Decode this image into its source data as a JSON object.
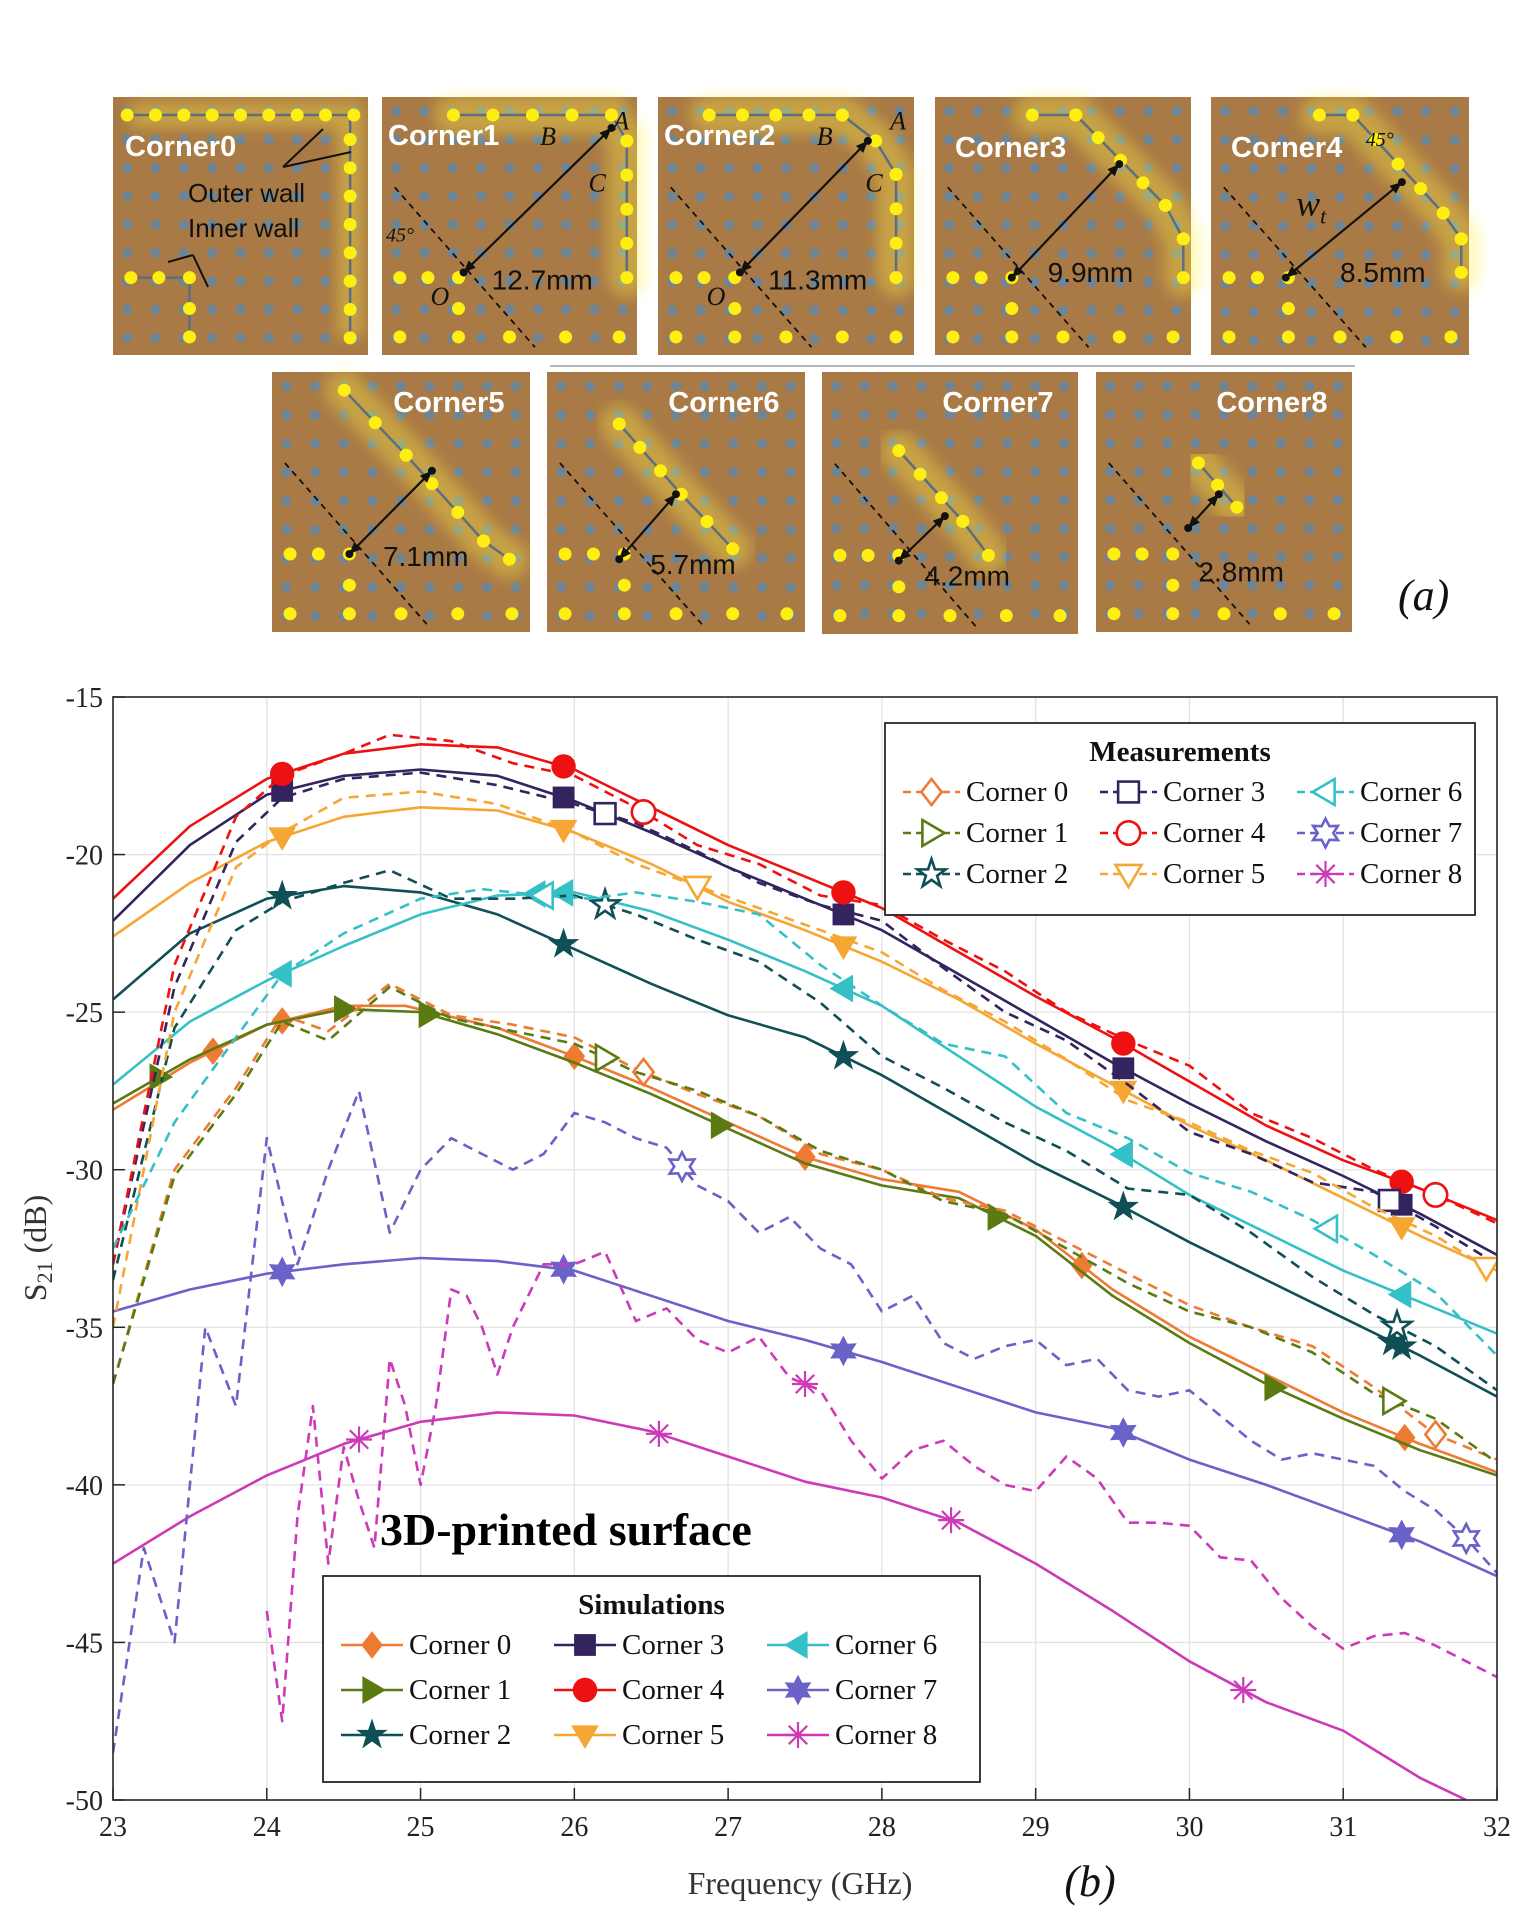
{
  "panel_a": {
    "label": "(a)",
    "corners": [
      {
        "name": "Corner0",
        "dimension": "",
        "wall_labels": [
          "Outer wall",
          "Inner wall"
        ]
      },
      {
        "name": "Corner1",
        "dimension": "12.7mm",
        "points": [
          "A",
          "B",
          "C",
          "O"
        ],
        "angle": "45°"
      },
      {
        "name": "Corner2",
        "dimension": "11.3mm",
        "points": [
          "A",
          "B",
          "C",
          "O"
        ]
      },
      {
        "name": "Corner3",
        "dimension": "9.9mm"
      },
      {
        "name": "Corner4",
        "dimension": "8.5mm",
        "width_symbol": "w",
        "width_subscript": "t",
        "angle": "45°"
      },
      {
        "name": "Corner5",
        "dimension": "7.1mm"
      },
      {
        "name": "Corner6",
        "dimension": "5.7mm"
      },
      {
        "name": "Corner7",
        "dimension": "4.2mm"
      },
      {
        "name": "Corner8",
        "dimension": "2.8mm"
      }
    ]
  },
  "colors": {
    "Corner 0": "#ee7b33",
    "Corner 1": "#5a7a12",
    "Corner 2": "#0f4f55",
    "Corner 3": "#33235e",
    "Corner 4": "#ee1111",
    "Corner 5": "#f6a632",
    "Corner 6": "#35c0c8",
    "Corner 7": "#6a62c8",
    "Corner 8": "#cc3ab6"
  },
  "chart_data": {
    "type": "line",
    "panel_label": "(b)",
    "annotation": "3D-printed surface",
    "xlabel": "Frequency (GHz)",
    "ylabel": "S21 (dB)",
    "xlim": [
      23,
      32
    ],
    "ylim": [
      -50,
      -15
    ],
    "xticks": [
      23,
      24,
      25,
      26,
      27,
      28,
      29,
      30,
      31,
      32
    ],
    "yticks": [
      -15,
      -20,
      -25,
      -30,
      -35,
      -40,
      -45,
      -50
    ],
    "grid": true,
    "legends": {
      "measurements": {
        "title": "Measurements",
        "placement": "top-right",
        "entries": [
          "Corner 0",
          "Corner 1",
          "Corner 2",
          "Corner 3",
          "Corner 4",
          "Corner 5",
          "Corner 6",
          "Corner 7",
          "Corner 8"
        ]
      },
      "simulations": {
        "title": "Simulations",
        "placement": "bottom-left",
        "entries": [
          "Corner 0",
          "Corner 1",
          "Corner 2",
          "Corner 3",
          "Corner 4",
          "Corner 5",
          "Corner 6",
          "Corner 7",
          "Corner 8"
        ]
      }
    },
    "simulations": [
      {
        "name": "Corner 0",
        "marker": "diamond",
        "filled": true,
        "x": [
          23,
          23.5,
          24,
          24.5,
          24.9,
          25.5,
          26,
          26.5,
          27,
          27.5,
          28,
          28.5,
          29,
          29.5,
          30,
          30.5,
          31,
          31.5,
          32
        ],
        "y": [
          -28.1,
          -26.6,
          -25.4,
          -24.8,
          -24.8,
          -25.5,
          -26.4,
          -27.4,
          -28.5,
          -29.6,
          -30.3,
          -30.7,
          -31.9,
          -33.8,
          -35.3,
          -36.5,
          -37.7,
          -38.7,
          -39.6
        ]
      },
      {
        "name": "Corner 1",
        "marker": "triangle-right",
        "filled": true,
        "x": [
          23,
          23.5,
          24,
          24.5,
          25,
          25.5,
          26,
          26.5,
          27,
          27.5,
          28,
          28.5,
          29,
          29.5,
          30,
          30.5,
          31,
          31.5,
          32
        ],
        "y": [
          -27.9,
          -26.5,
          -25.4,
          -24.9,
          -25.0,
          -25.7,
          -26.6,
          -27.6,
          -28.7,
          -29.8,
          -30.5,
          -30.9,
          -32.1,
          -34.0,
          -35.5,
          -36.8,
          -37.9,
          -38.9,
          -39.7
        ]
      },
      {
        "name": "Corner 2",
        "marker": "star",
        "filled": true,
        "x": [
          23,
          23.5,
          24,
          24.5,
          25,
          25.5,
          26,
          26.5,
          27,
          27.5,
          28,
          28.5,
          29,
          29.5,
          30,
          30.5,
          31,
          31.5,
          32
        ],
        "y": [
          -24.6,
          -22.5,
          -21.4,
          -21.0,
          -21.2,
          -21.9,
          -23.0,
          -24.1,
          -25.1,
          -25.8,
          -27.0,
          -28.4,
          -29.8,
          -31.0,
          -32.3,
          -33.5,
          -34.7,
          -35.9,
          -37.2
        ]
      },
      {
        "name": "Corner 3",
        "marker": "square",
        "filled": true,
        "x": [
          23,
          23.5,
          24,
          24.5,
          25,
          25.5,
          26,
          26.5,
          27,
          27.5,
          28,
          28.5,
          29,
          29.5,
          30,
          30.5,
          31,
          31.5,
          32
        ],
        "y": [
          -22.1,
          -19.7,
          -18.1,
          -17.5,
          -17.3,
          -17.5,
          -18.3,
          -19.3,
          -20.4,
          -21.4,
          -22.4,
          -23.8,
          -25.2,
          -26.6,
          -27.9,
          -29.1,
          -30.2,
          -31.4,
          -32.7
        ]
      },
      {
        "name": "Corner 4",
        "marker": "circle",
        "filled": true,
        "x": [
          23,
          23.5,
          24,
          24.5,
          25,
          25.5,
          26,
          26.5,
          27,
          27.5,
          28,
          28.5,
          29,
          29.5,
          30,
          30.5,
          31,
          31.5,
          32
        ],
        "y": [
          -21.4,
          -19.1,
          -17.6,
          -16.8,
          -16.5,
          -16.6,
          -17.3,
          -18.5,
          -19.7,
          -20.7,
          -21.7,
          -23.1,
          -24.5,
          -25.8,
          -27.2,
          -28.6,
          -29.7,
          -30.6,
          -31.6
        ]
      },
      {
        "name": "Corner 5",
        "marker": "triangle-down",
        "filled": true,
        "x": [
          23,
          23.5,
          24,
          24.5,
          25,
          25.5,
          26,
          26.5,
          27,
          27.5,
          28,
          28.5,
          29,
          29.5,
          30,
          30.5,
          31,
          31.5,
          32
        ],
        "y": [
          -22.6,
          -20.9,
          -19.6,
          -18.8,
          -18.5,
          -18.6,
          -19.3,
          -20.3,
          -21.5,
          -22.4,
          -23.4,
          -24.6,
          -26.0,
          -27.3,
          -28.6,
          -29.7,
          -30.9,
          -32.1,
          -33.2
        ]
      },
      {
        "name": "Corner 6",
        "marker": "triangle-left",
        "filled": true,
        "x": [
          23,
          23.5,
          24,
          24.5,
          25,
          25.5,
          26,
          26.5,
          27,
          27.5,
          28,
          28.5,
          29,
          29.5,
          30,
          30.5,
          31,
          31.5,
          32
        ],
        "y": [
          -27.3,
          -25.3,
          -24.0,
          -22.9,
          -21.9,
          -21.3,
          -21.2,
          -21.8,
          -22.7,
          -23.7,
          -24.8,
          -26.4,
          -28.0,
          -29.3,
          -30.8,
          -32.0,
          -33.2,
          -34.2,
          -35.2
        ]
      },
      {
        "name": "Corner 7",
        "marker": "hexagram",
        "filled": true,
        "x": [
          23,
          23.5,
          24,
          24.5,
          25,
          25.5,
          26,
          26.5,
          27,
          27.5,
          28,
          28.5,
          29,
          29.5,
          30,
          30.5,
          31,
          31.5,
          32
        ],
        "y": [
          -34.5,
          -33.8,
          -33.3,
          -33.0,
          -32.8,
          -32.9,
          -33.2,
          -34.0,
          -34.8,
          -35.4,
          -36.1,
          -36.9,
          -37.7,
          -38.2,
          -39.2,
          -40.0,
          -40.9,
          -41.8,
          -42.9
        ]
      },
      {
        "name": "Corner 8",
        "marker": "asterisk",
        "filled": false,
        "x": [
          23,
          23.5,
          24,
          24.5,
          25,
          25.5,
          26,
          26.5,
          27,
          27.5,
          28,
          28.5,
          29,
          29.5,
          30,
          30.5,
          31,
          31.5,
          31.8
        ],
        "y": [
          -42.5,
          -41.0,
          -39.7,
          -38.7,
          -38.0,
          -37.7,
          -37.8,
          -38.3,
          -39.1,
          -39.9,
          -40.4,
          -41.2,
          -42.5,
          -44.0,
          -45.6,
          -46.9,
          -47.8,
          -49.3,
          -50.0
        ]
      }
    ],
    "measurements": [
      {
        "name": "Corner 0",
        "marker": "diamond",
        "x": [
          23,
          23.4,
          23.8,
          24.1,
          24.4,
          24.8,
          25.2,
          25.6,
          26,
          26.4,
          26.8,
          27.2,
          27.6,
          28,
          28.4,
          28.8,
          29.2,
          29.6,
          30,
          30.4,
          30.8,
          31.2,
          31.6,
          32
        ],
        "y": [
          -36.8,
          -30.0,
          -27.4,
          -25.1,
          -25.6,
          -24.1,
          -25.1,
          -25.4,
          -25.8,
          -26.8,
          -27.6,
          -28.3,
          -29.5,
          -30.0,
          -30.9,
          -31.3,
          -32.3,
          -33.3,
          -34.3,
          -35.0,
          -35.6,
          -36.9,
          -38.4,
          -39.2
        ]
      },
      {
        "name": "Corner 1",
        "marker": "triangle-right",
        "x": [
          23,
          23.4,
          23.8,
          24.1,
          24.4,
          24.8,
          25.2,
          25.6,
          26,
          26.4,
          26.8,
          27.2,
          27.6,
          28,
          28.4,
          28.8,
          29.2,
          29.6,
          30,
          30.4,
          30.8,
          31.2,
          31.6,
          32
        ],
        "y": [
          -36.8,
          -30.2,
          -27.6,
          -25.3,
          -25.9,
          -24.2,
          -25.2,
          -25.6,
          -26.0,
          -26.9,
          -27.5,
          -28.3,
          -29.4,
          -30.0,
          -31.0,
          -31.4,
          -32.5,
          -33.6,
          -34.5,
          -35.0,
          -35.8,
          -37.1,
          -37.9,
          -39.3
        ]
      },
      {
        "name": "Corner 2",
        "marker": "star",
        "x": [
          23,
          23.4,
          23.8,
          24.1,
          24.5,
          24.8,
          25.2,
          25.6,
          26,
          26.4,
          26.8,
          27.2,
          27.6,
          28,
          28.4,
          28.8,
          29.2,
          29.6,
          30,
          30.4,
          30.8,
          31.2,
          31.6,
          32
        ],
        "y": [
          -33.5,
          -25.5,
          -22.4,
          -21.5,
          -20.9,
          -20.5,
          -21.4,
          -21.4,
          -21.3,
          -21.9,
          -22.7,
          -23.4,
          -24.7,
          -26.4,
          -27.4,
          -28.5,
          -29.4,
          -30.6,
          -30.8,
          -32.0,
          -33.4,
          -34.6,
          -35.6,
          -37.0
        ]
      },
      {
        "name": "Corner 3",
        "marker": "square",
        "x": [
          23,
          23.4,
          23.8,
          24.1,
          24.5,
          25,
          25.5,
          26,
          26.4,
          26.8,
          27.2,
          27.6,
          28,
          28.4,
          28.8,
          29.2,
          29.6,
          30,
          30.4,
          30.8,
          31.2,
          31.6,
          32
        ],
        "y": [
          -33.0,
          -24.2,
          -19.6,
          -18.2,
          -17.6,
          -17.4,
          -17.8,
          -18.4,
          -19.0,
          -19.9,
          -20.9,
          -21.6,
          -22.1,
          -23.6,
          -25.0,
          -25.9,
          -27.3,
          -28.8,
          -29.5,
          -30.4,
          -30.7,
          -31.8,
          -33.0
        ]
      },
      {
        "name": "Corner 4",
        "marker": "circle",
        "x": [
          23,
          23.4,
          23.8,
          24.1,
          24.5,
          24.8,
          25.2,
          25.6,
          26,
          26.4,
          26.8,
          27.2,
          27.6,
          28,
          28.4,
          28.8,
          29.2,
          29.6,
          30,
          30.4,
          30.8,
          31.2,
          31.6,
          32
        ],
        "y": [
          -33.0,
          -23.5,
          -18.8,
          -17.5,
          -16.8,
          -16.2,
          -16.4,
          -17.1,
          -17.5,
          -18.5,
          -19.7,
          -20.3,
          -21.3,
          -21.6,
          -22.7,
          -23.7,
          -25.0,
          -25.9,
          -26.7,
          -28.2,
          -29.0,
          -30.0,
          -30.8,
          -31.7
        ]
      },
      {
        "name": "Corner 5",
        "marker": "triangle-down",
        "x": [
          23,
          23.4,
          23.8,
          24.1,
          24.5,
          25,
          25.5,
          26,
          26.4,
          26.8,
          27.2,
          27.6,
          28,
          28.4,
          28.8,
          29.2,
          29.6,
          30,
          30.4,
          30.8,
          31.2,
          31.6,
          32
        ],
        "y": [
          -35.0,
          -25.0,
          -20.4,
          -19.3,
          -18.2,
          -18.0,
          -18.4,
          -19.3,
          -20.3,
          -21.0,
          -21.7,
          -22.4,
          -23.1,
          -24.3,
          -25.3,
          -26.5,
          -27.8,
          -28.5,
          -29.4,
          -30.1,
          -31.2,
          -32.1,
          -33.3
        ]
      },
      {
        "name": "Corner 6",
        "marker": "triangle-left",
        "x": [
          23,
          23.4,
          23.8,
          24.1,
          24.5,
          25,
          25.4,
          25.8,
          26.1,
          26.4,
          26.8,
          27.2,
          27.6,
          28,
          28.4,
          28.8,
          29.2,
          29.6,
          30,
          30.4,
          30.8,
          31.2,
          31.6,
          32
        ],
        "y": [
          -32.5,
          -28.5,
          -25.8,
          -23.8,
          -22.5,
          -21.4,
          -21.1,
          -21.3,
          -21.4,
          -21.2,
          -21.5,
          -21.9,
          -23.5,
          -24.8,
          -26.0,
          -26.4,
          -28.2,
          -29.0,
          -30.1,
          -30.7,
          -31.6,
          -32.7,
          -33.9,
          -35.9
        ]
      },
      {
        "name": "Corner 7",
        "marker": "hexagram",
        "x": [
          23,
          23.2,
          23.4,
          23.6,
          23.8,
          24.0,
          24.2,
          24.4,
          24.6,
          24.8,
          25.0,
          25.2,
          25.4,
          25.6,
          25.8,
          26.0,
          26.2,
          26.4,
          26.6,
          26.8,
          27.0,
          27.2,
          27.4,
          27.6,
          27.8,
          28.0,
          28.2,
          28.4,
          28.6,
          28.8,
          29.0,
          29.2,
          29.4,
          29.6,
          29.8,
          30.0,
          30.2,
          30.4,
          30.6,
          30.8,
          31.0,
          31.2,
          31.4,
          31.6,
          31.8,
          32.0
        ],
        "y": [
          -48.5,
          -42.0,
          -45.0,
          -35.0,
          -37.5,
          -29.0,
          -33.0,
          -30.0,
          -27.5,
          -32.0,
          -30.0,
          -29.0,
          -29.5,
          -30.0,
          -29.5,
          -28.2,
          -28.5,
          -29.0,
          -29.3,
          -30.5,
          -31.0,
          -32.0,
          -31.5,
          -32.5,
          -33.0,
          -34.5,
          -34.0,
          -35.5,
          -36.0,
          -35.6,
          -35.4,
          -36.2,
          -36.0,
          -37.0,
          -37.2,
          -37.0,
          -37.8,
          -38.6,
          -39.2,
          -39.0,
          -39.2,
          -39.4,
          -40.2,
          -40.8,
          -41.7,
          -42.8
        ]
      },
      {
        "name": "Corner 8",
        "marker": "asterisk",
        "x": [
          24.0,
          24.1,
          24.2,
          24.3,
          24.4,
          24.5,
          24.6,
          24.7,
          24.8,
          24.9,
          25.0,
          25.1,
          25.2,
          25.3,
          25.4,
          25.5,
          25.6,
          25.8,
          26.0,
          26.2,
          26.4,
          26.6,
          26.8,
          27.0,
          27.2,
          27.4,
          27.6,
          27.8,
          28.0,
          28.2,
          28.4,
          28.6,
          28.8,
          29.0,
          29.2,
          29.4,
          29.6,
          29.8,
          30.0,
          30.2,
          30.4,
          30.6,
          30.8,
          31.0,
          31.2,
          31.4,
          31.6,
          31.8,
          32.0
        ],
        "y": [
          -44.0,
          -47.5,
          -41.0,
          -37.5,
          -42.5,
          -38.8,
          -40.5,
          -42.0,
          -36.0,
          -37.5,
          -40.0,
          -37.5,
          -33.8,
          -34.0,
          -35.0,
          -36.5,
          -35.0,
          -33.0,
          -33.0,
          -32.6,
          -34.8,
          -34.4,
          -35.4,
          -35.8,
          -35.3,
          -36.6,
          -37.0,
          -38.6,
          -39.8,
          -38.9,
          -38.6,
          -39.4,
          -40.0,
          -40.2,
          -39.1,
          -39.8,
          -41.2,
          -41.2,
          -41.3,
          -42.3,
          -42.4,
          -43.6,
          -44.5,
          -45.2,
          -44.8,
          -44.7,
          -45.1,
          -45.6,
          -46.1
        ]
      }
    ]
  }
}
